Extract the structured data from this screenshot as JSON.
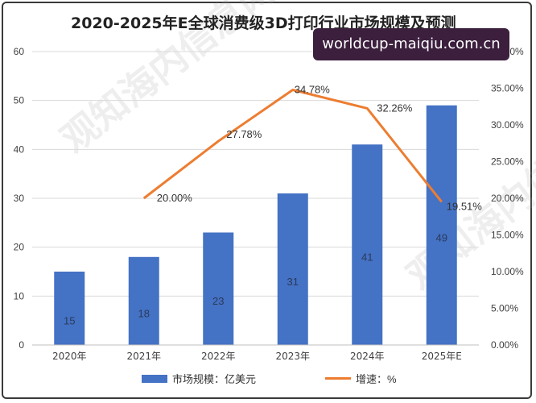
{
  "title": "2020-2025年E全球消费级3D打印行业市场规模及预测",
  "url_badge": "worldcup-maiqiu.com.cn",
  "watermark": "观知海内信息网",
  "colors": {
    "bar": "#4472C4",
    "line": "#ED7D31",
    "grid": "#d9d9d9",
    "text": "#404040"
  },
  "chart_data": {
    "type": "bar",
    "categories": [
      "2020年",
      "2021年",
      "2022年",
      "2023年",
      "2024年",
      "2025年E"
    ],
    "series": [
      {
        "name": "市场规模：亿美元",
        "type": "bar",
        "axis": "left",
        "values": [
          15,
          18,
          23,
          31,
          41,
          49
        ],
        "labels": [
          "15",
          "18",
          "23",
          "31",
          "41",
          "49"
        ]
      },
      {
        "name": "增速：%",
        "type": "line",
        "axis": "right",
        "values": [
          null,
          20.0,
          27.78,
          34.78,
          32.26,
          19.51
        ],
        "labels": [
          "",
          "20.00%",
          "27.78%",
          "34.78%",
          "32.26%",
          "19.51%"
        ]
      }
    ],
    "y_left": {
      "min": 0,
      "max": 60,
      "ticks": [
        "0",
        "10",
        "20",
        "30",
        "40",
        "50",
        "60"
      ]
    },
    "y_right": {
      "min": 0,
      "max": 40,
      "ticks": [
        "0.00%",
        "5.00%",
        "10.00%",
        "15.00%",
        "20.00%",
        "25.00%",
        "30.00%",
        "35.00%",
        "40.00%"
      ]
    },
    "grid": true,
    "legend_position": "bottom"
  }
}
